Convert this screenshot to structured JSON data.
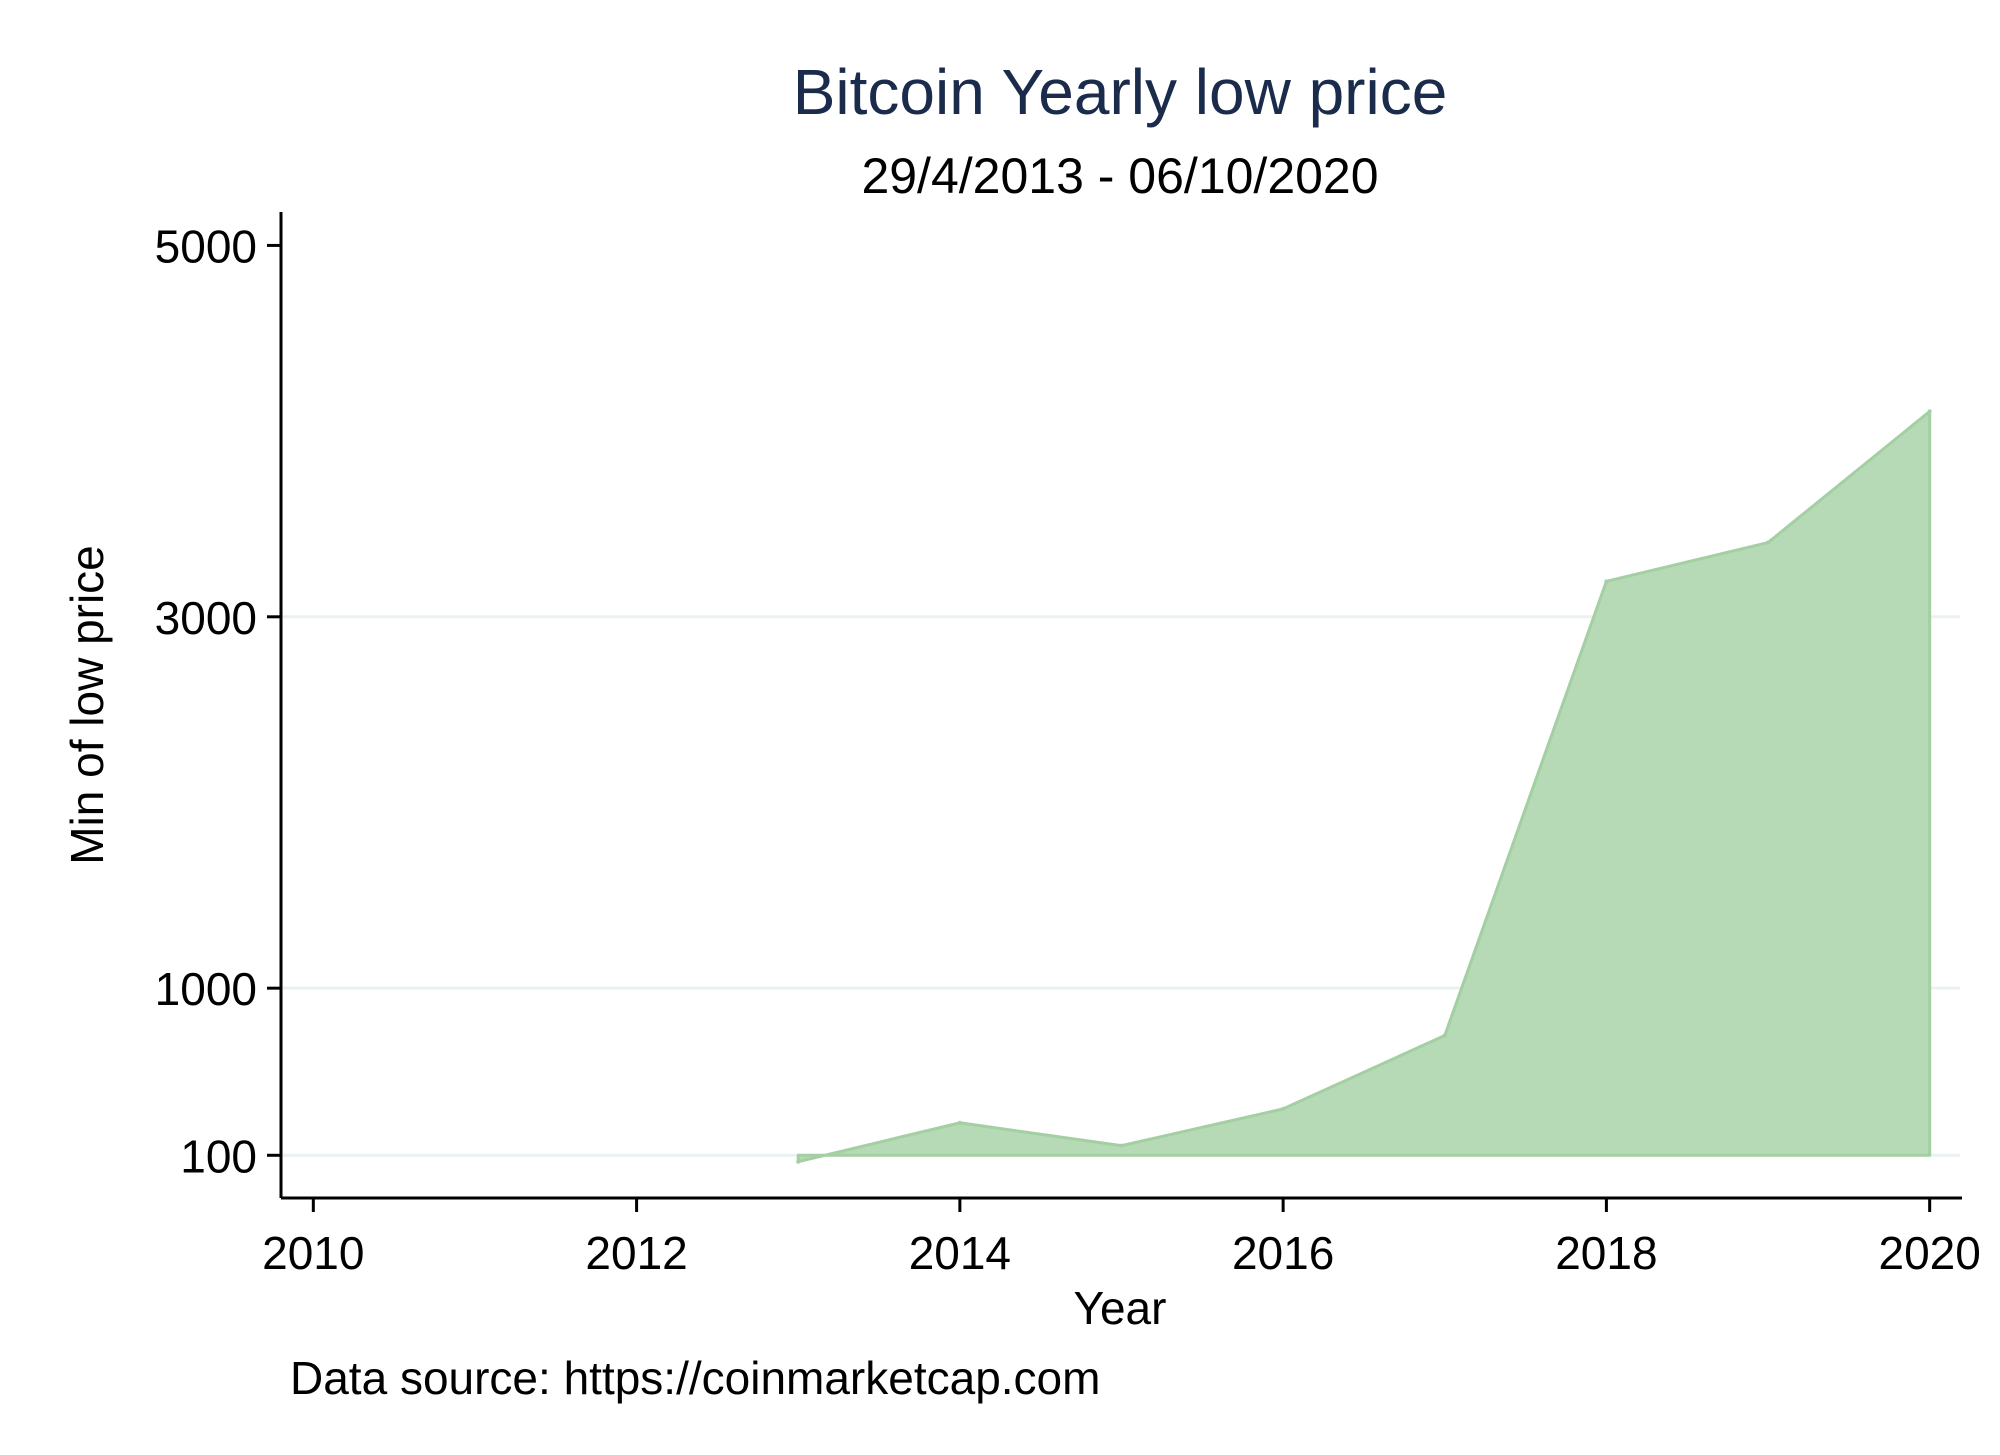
{
  "chart_data": {
    "type": "area",
    "title": "Bitcoin Yearly low price",
    "subtitle": "29/4/2013 - 06/10/2020",
    "xlabel": "Year",
    "ylabel": "Min of low price",
    "note": "Data source: https://coinmarketcap.com",
    "x": [
      2013,
      2014,
      2015,
      2016,
      2017,
      2018,
      2019,
      2020
    ],
    "y": [
      65.5,
      275,
      152,
      350,
      745,
      3191,
      3400,
      4106
    ],
    "xlim": [
      2009.8,
      2020.2
    ],
    "x_ticks": [
      2010,
      2012,
      2014,
      2016,
      2018,
      2020
    ],
    "y_ticks": [
      100,
      1000,
      3000,
      5000
    ],
    "ylim": [
      -130,
      5180
    ],
    "baseline": 100,
    "grid": "horizontal",
    "colors": {
      "fill": "#b5dab5",
      "line": "#a3cfa3",
      "grid": "#eaf2f3",
      "axis": "#000000",
      "title": "#1a2b4c"
    }
  }
}
